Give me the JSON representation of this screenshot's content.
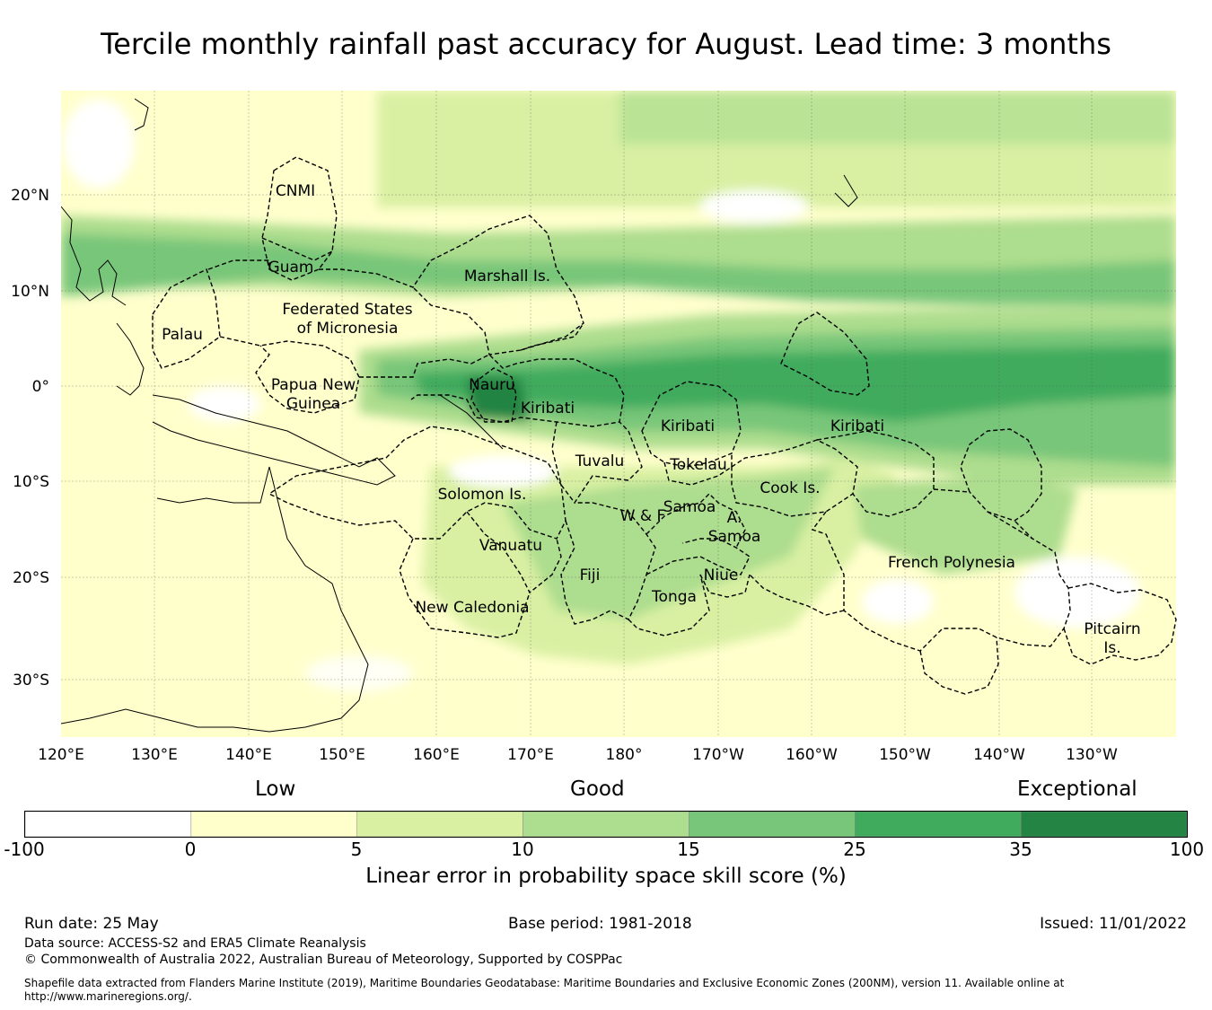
{
  "title": "Tercile monthly rainfall past accuracy for August. Lead time: 3 months",
  "map": {
    "lon_labels": [
      "120°E",
      "130°E",
      "140°E",
      "150°E",
      "160°E",
      "170°E",
      "180°",
      "170°W",
      "160°W",
      "150°W",
      "140°W",
      "130°W"
    ],
    "lat_labels": [
      "20°N",
      "10°N",
      "0°",
      "10°S",
      "20°S",
      "30°S"
    ],
    "regions": [
      {
        "id": "cnmi",
        "text": "CNMI"
      },
      {
        "id": "guam",
        "text": "Guam"
      },
      {
        "id": "marshall",
        "text": "Marshall Is."
      },
      {
        "id": "fsm1",
        "text": "Federated States"
      },
      {
        "id": "fsm2",
        "text": "of Micronesia"
      },
      {
        "id": "palau",
        "text": "Palau"
      },
      {
        "id": "png1",
        "text": "Papua New"
      },
      {
        "id": "png2",
        "text": "Guinea"
      },
      {
        "id": "nauru",
        "text": "Nauru"
      },
      {
        "id": "kiribati_w",
        "text": "Kiribati"
      },
      {
        "id": "kiribati_c",
        "text": "Kiribati"
      },
      {
        "id": "kiribati_e",
        "text": "Kiribati"
      },
      {
        "id": "tuvalu",
        "text": "Tuvalu"
      },
      {
        "id": "tokelau",
        "text": "Tokelau"
      },
      {
        "id": "cook",
        "text": "Cook Is."
      },
      {
        "id": "solomon",
        "text": "Solomon Is."
      },
      {
        "id": "samoa",
        "text": "Samoa"
      },
      {
        "id": "wf",
        "text": "W & F"
      },
      {
        "id": "asamoa1",
        "text": "A."
      },
      {
        "id": "asamoa2",
        "text": "Samoa"
      },
      {
        "id": "vanuatu",
        "text": "Vanuatu"
      },
      {
        "id": "fiji",
        "text": "Fiji"
      },
      {
        "id": "niue",
        "text": "Niue"
      },
      {
        "id": "tonga",
        "text": "Tonga"
      },
      {
        "id": "newcal",
        "text": "New Caledonia"
      },
      {
        "id": "frenchpoly",
        "text": "French Polynesia"
      },
      {
        "id": "pitcairn1",
        "text": "Pitcairn"
      },
      {
        "id": "pitcairn2",
        "text": "Is."
      }
    ]
  },
  "colorbar": {
    "qualitative": [
      "Low",
      "Good",
      "Exceptional"
    ],
    "ticks": [
      "-100",
      "0",
      "5",
      "10",
      "15",
      "25",
      "35",
      "100"
    ],
    "colors": [
      "#ffffff",
      "#ffffcc",
      "#d9f0a3",
      "#addd8e",
      "#78c679",
      "#41ab5d",
      "#238443"
    ],
    "title": "Linear error in probability space skill score (%)"
  },
  "footer": {
    "run_date": "Run date: 25 May",
    "base_period": "Base period: 1981-2018",
    "issued": "Issued: 11/01/2022",
    "data_source": "Data source: ACCESS-S2 and ERA5 Climate Reanalysis",
    "copyright": "© Commonwealth of Australia 2022, Australian Bureau of Meteorology, Supported by COSPPac",
    "shapefile_line1": "Shapefile data extracted from Flanders Marine Institute (2019), Maritime Boundaries Geodatabase: Maritime Boundaries and Exclusive Economic Zones (200NM), version 11. Available online at",
    "shapefile_line2": "http://www.marineregions.org/."
  }
}
